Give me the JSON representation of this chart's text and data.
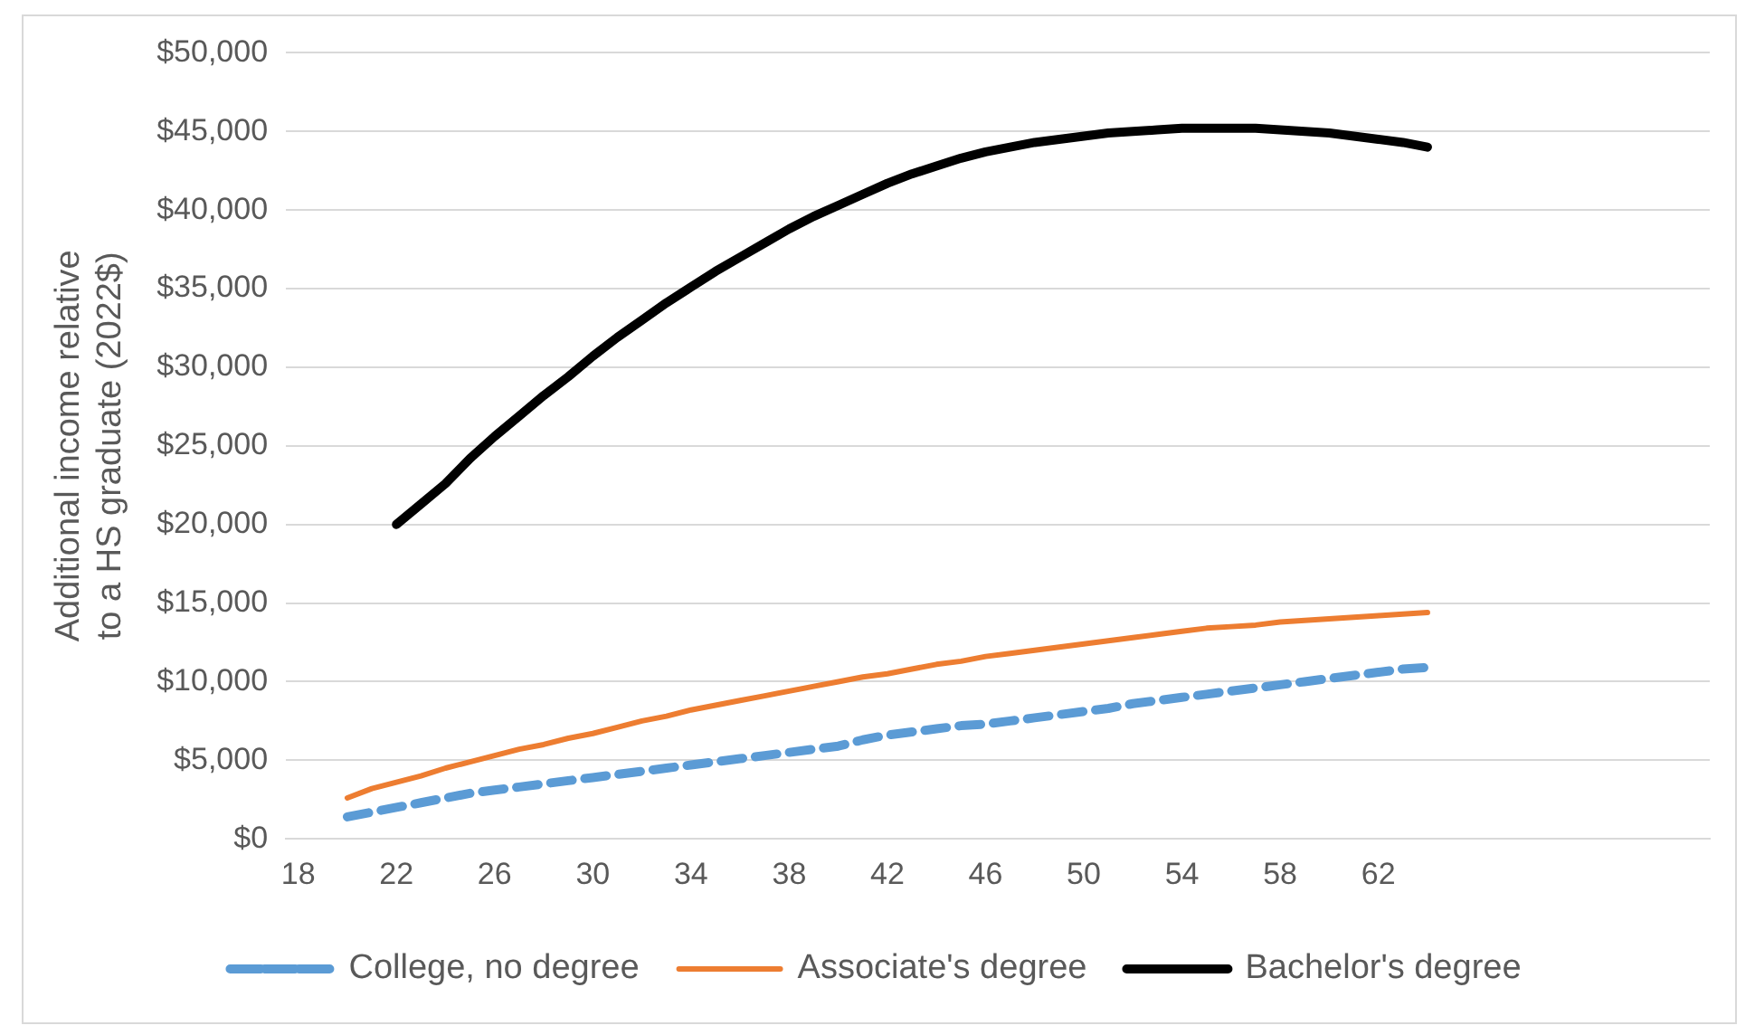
{
  "chart_data": {
    "type": "line",
    "ylabel": "Additional income relative to a HS graduate (2022$)",
    "categories": [
      "18",
      null,
      null,
      null,
      "22",
      null,
      null,
      null,
      "26",
      null,
      null,
      null,
      "30",
      null,
      null,
      null,
      "34",
      null,
      null,
      null,
      "38",
      null,
      null,
      null,
      "42",
      null,
      null,
      null,
      "46",
      null,
      null,
      null,
      "50",
      null,
      null,
      null,
      "54",
      null,
      null,
      null,
      "58",
      null,
      null,
      null,
      "62",
      null,
      null,
      null,
      null,
      null,
      null,
      null,
      null,
      null,
      null,
      null,
      null,
      null
    ],
    "series": [
      {
        "name": "College, no degree",
        "color": "#5b9bd5",
        "line_style": "dashed",
        "values": [
          null,
          null,
          1400,
          1700,
          2000,
          2300,
          2600,
          2900,
          3100,
          3300,
          3500,
          3700,
          3900,
          4100,
          4300,
          4500,
          4700,
          4900,
          5100,
          5300,
          5500,
          5700,
          5900,
          6300,
          6600,
          6800,
          7000,
          7200,
          7300,
          7500,
          7700,
          7900,
          8100,
          8300,
          8600,
          8800,
          9000,
          9200,
          9400,
          9600,
          9800,
          10000,
          10200,
          10400,
          10600,
          10800,
          10900,
          null,
          null,
          null,
          null,
          null,
          null,
          null,
          null,
          null,
          null,
          null
        ]
      },
      {
        "name": "Associate's degree",
        "color": "#ed7d31",
        "line_style": "solid",
        "values": [
          null,
          null,
          2600,
          3200,
          3600,
          4000,
          4500,
          4900,
          5300,
          5700,
          6000,
          6400,
          6700,
          7100,
          7500,
          7800,
          8200,
          8500,
          8800,
          9100,
          9400,
          9700,
          10000,
          10300,
          10500,
          10800,
          11100,
          11300,
          11600,
          11800,
          12000,
          12200,
          12400,
          12600,
          12800,
          13000,
          13200,
          13400,
          13500,
          13600,
          13800,
          13900,
          14000,
          14100,
          14200,
          14300,
          14400,
          null,
          null,
          null,
          null,
          null,
          null,
          null,
          null,
          null,
          null,
          null
        ]
      },
      {
        "name": "Bachelor's degree",
        "color": "#000000",
        "line_style": "solid",
        "values": [
          null,
          null,
          null,
          null,
          20000,
          21300,
          22600,
          24200,
          25600,
          26900,
          28200,
          29400,
          30700,
          31900,
          33000,
          34100,
          35100,
          36100,
          37000,
          37900,
          38800,
          39600,
          40300,
          41000,
          41700,
          42300,
          42800,
          43300,
          43700,
          44000,
          44300,
          44500,
          44700,
          44900,
          45000,
          45100,
          45200,
          45200,
          45200,
          45200,
          45100,
          45000,
          44900,
          44700,
          44500,
          44300,
          44000,
          null,
          null,
          null,
          null,
          null,
          null,
          null,
          null,
          null,
          null,
          null
        ]
      }
    ],
    "ylim": [
      0,
      50000
    ],
    "yticks": [
      {
        "value": 0,
        "label": "$0"
      },
      {
        "value": 5000,
        "label": "$5,000"
      },
      {
        "value": 10000,
        "label": "$10,000"
      },
      {
        "value": 15000,
        "label": "$15,000"
      },
      {
        "value": 20000,
        "label": "$20,000"
      },
      {
        "value": 25000,
        "label": "$25,000"
      },
      {
        "value": 30000,
        "label": "$30,000"
      },
      {
        "value": 35000,
        "label": "$35,000"
      },
      {
        "value": 40000,
        "label": "$40,000"
      },
      {
        "value": 45000,
        "label": "$45,000"
      },
      {
        "value": 50000,
        "label": "$50,000"
      }
    ],
    "grid": "y",
    "legend": "bottom",
    "marker": "none"
  }
}
